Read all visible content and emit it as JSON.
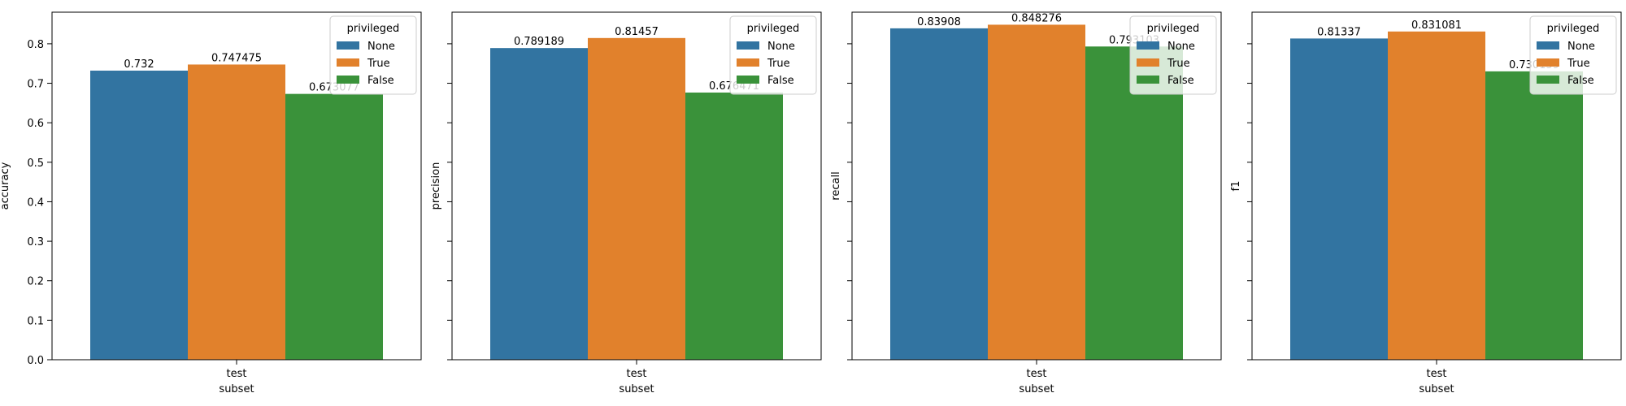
{
  "chart_data": [
    {
      "type": "bar",
      "categories": [
        "test"
      ],
      "xlabel": "subset",
      "ylabel": "accuracy",
      "ylim": [
        0,
        0.88
      ],
      "yticks": [
        "0.0",
        "0.1",
        "0.2",
        "0.3",
        "0.4",
        "0.5",
        "0.6",
        "0.7",
        "0.8"
      ],
      "show_yticklabels": true,
      "legend": {
        "title": "privileged",
        "placement": "top-right"
      },
      "series": [
        {
          "name": "None",
          "values": [
            0.732
          ],
          "label": "0.732",
          "color": "#3274a1"
        },
        {
          "name": "True",
          "values": [
            0.747475
          ],
          "label": "0.747475",
          "color": "#e1812c"
        },
        {
          "name": "False",
          "values": [
            0.673077
          ],
          "label": "0.673077",
          "color": "#3a923a"
        }
      ]
    },
    {
      "type": "bar",
      "categories": [
        "test"
      ],
      "xlabel": "subset",
      "ylabel": "precision",
      "ylim": [
        0,
        0.88
      ],
      "yticks": [
        "0.0",
        "0.1",
        "0.2",
        "0.3",
        "0.4",
        "0.5",
        "0.6",
        "0.7",
        "0.8"
      ],
      "show_yticklabels": false,
      "legend": {
        "title": "privileged",
        "placement": "top-right"
      },
      "series": [
        {
          "name": "None",
          "values": [
            0.789189
          ],
          "label": "0.789189",
          "color": "#3274a1"
        },
        {
          "name": "True",
          "values": [
            0.81457
          ],
          "label": "0.81457",
          "color": "#e1812c"
        },
        {
          "name": "False",
          "values": [
            0.676471
          ],
          "label": "0.676471",
          "color": "#3a923a"
        }
      ]
    },
    {
      "type": "bar",
      "categories": [
        "test"
      ],
      "xlabel": "subset",
      "ylabel": "recall",
      "ylim": [
        0,
        0.88
      ],
      "yticks": [
        "0.0",
        "0.1",
        "0.2",
        "0.3",
        "0.4",
        "0.5",
        "0.6",
        "0.7",
        "0.8"
      ],
      "show_yticklabels": false,
      "legend": {
        "title": "privileged",
        "placement": "top-right"
      },
      "series": [
        {
          "name": "None",
          "values": [
            0.83908
          ],
          "label": "0.83908",
          "color": "#3274a1"
        },
        {
          "name": "True",
          "values": [
            0.848276
          ],
          "label": "0.848276",
          "color": "#e1812c"
        },
        {
          "name": "False",
          "values": [
            0.793103
          ],
          "label": "0.793103",
          "color": "#3a923a"
        }
      ]
    },
    {
      "type": "bar",
      "categories": [
        "test"
      ],
      "xlabel": "subset",
      "ylabel": "f1",
      "ylim": [
        0,
        0.88
      ],
      "yticks": [
        "0.0",
        "0.1",
        "0.2",
        "0.3",
        "0.4",
        "0.5",
        "0.6",
        "0.7",
        "0.8"
      ],
      "show_yticklabels": false,
      "legend": {
        "title": "privileged",
        "placement": "top-right"
      },
      "series": [
        {
          "name": "None",
          "values": [
            0.81337
          ],
          "label": "0.81337",
          "color": "#3274a1"
        },
        {
          "name": "True",
          "values": [
            0.831081
          ],
          "label": "0.831081",
          "color": "#e1812c"
        },
        {
          "name": "False",
          "values": [
            0.730159
          ],
          "label": "0.730159",
          "color": "#3a923a"
        }
      ]
    }
  ]
}
